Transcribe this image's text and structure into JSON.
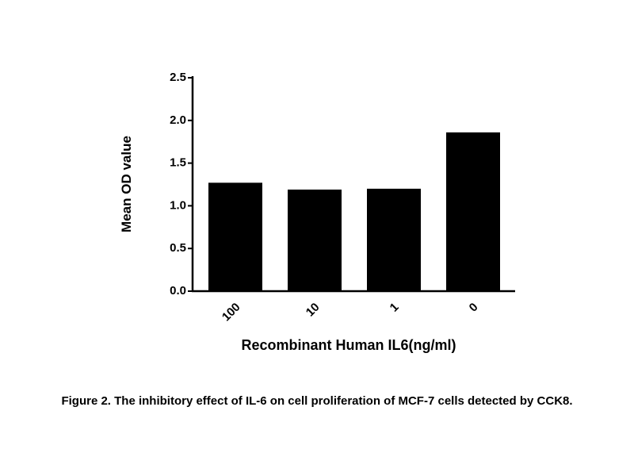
{
  "chart_data": {
    "type": "bar",
    "y_label": "Mean OD value",
    "x_label": "Recombinant Human IL6(ng/ml)",
    "caption": "Figure 2. The inhibitory effect of IL-6 on cell proliferation of MCF-7 cells detected by CCK8.",
    "categories": [
      "100",
      "10",
      "1",
      "0"
    ],
    "values": [
      1.27,
      1.19,
      1.2,
      1.86
    ],
    "color": "#000000",
    "ylim": [
      0,
      2.5
    ],
    "yticks": [
      {
        "value": 0,
        "label": "0.0"
      },
      0.5,
      {
        "value": 1,
        "label": "1.0"
      },
      1.5,
      {
        "value": 2,
        "label": "2.0"
      },
      2.5
    ]
  }
}
